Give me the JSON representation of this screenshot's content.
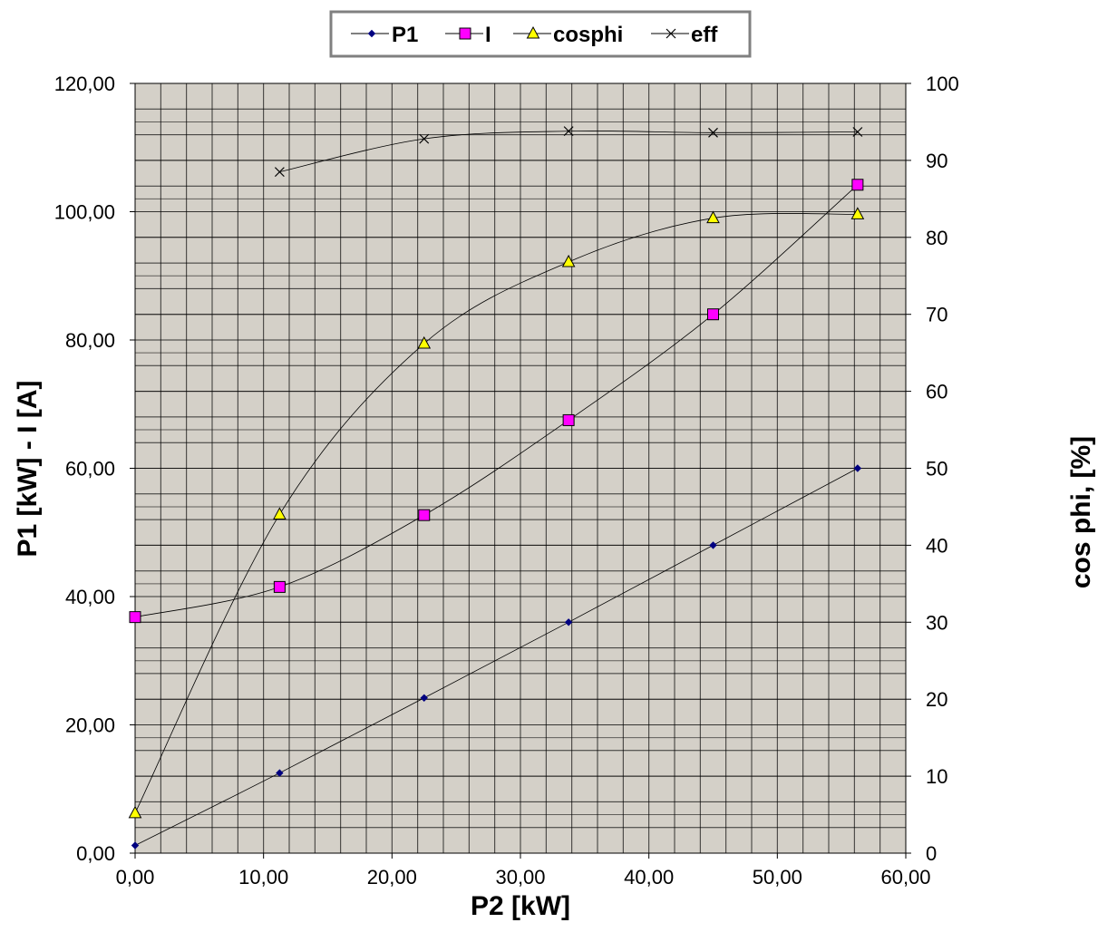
{
  "chart_data": {
    "type": "line",
    "xlabel": "P2 [kW]",
    "ylabel_left": "P1 [kW] - I [A]",
    "ylabel_right": "cos phi, [%]",
    "x_range": [
      0,
      60
    ],
    "y_left_range": [
      0,
      120
    ],
    "y_right_range": [
      0,
      100
    ],
    "x_ticks": [
      "0,00",
      "10,00",
      "20,00",
      "30,00",
      "40,00",
      "50,00",
      "60,00"
    ],
    "y_left_ticks": [
      "0,00",
      "20,00",
      "40,00",
      "60,00",
      "80,00",
      "100,00",
      "120,00"
    ],
    "y_right_ticks": [
      "0",
      "10",
      "20",
      "30",
      "40",
      "50",
      "60",
      "70",
      "80",
      "90",
      "100"
    ],
    "grid": true,
    "legend_position": "top-center",
    "plot_background": "#d4d0c8",
    "series": [
      {
        "name": "P1",
        "axis": "left",
        "marker": "diamond",
        "color": "#000080",
        "x": [
          0,
          11.25,
          22.5,
          33.75,
          45,
          56.25
        ],
        "y": [
          1.2,
          12.5,
          24.2,
          36.0,
          48.0,
          60.0
        ]
      },
      {
        "name": "I",
        "axis": "left",
        "marker": "square",
        "color": "#ff00ff",
        "x": [
          0,
          11.25,
          22.5,
          33.75,
          45,
          56.25
        ],
        "y": [
          36.8,
          41.5,
          52.7,
          67.5,
          84.0,
          104.2
        ]
      },
      {
        "name": "cosphi",
        "axis": "right",
        "marker": "triangle",
        "color": "#ffff00",
        "x": [
          0,
          11.25,
          22.5,
          33.75,
          45,
          56.25
        ],
        "y": [
          5.2,
          44.0,
          66.2,
          76.8,
          82.5,
          83.0
        ]
      },
      {
        "name": "eff",
        "axis": "right",
        "marker": "x",
        "color": "#000000",
        "x": [
          11.25,
          22.5,
          33.75,
          45,
          56.25
        ],
        "y": [
          88.5,
          92.8,
          93.8,
          93.6,
          93.7
        ]
      }
    ]
  }
}
